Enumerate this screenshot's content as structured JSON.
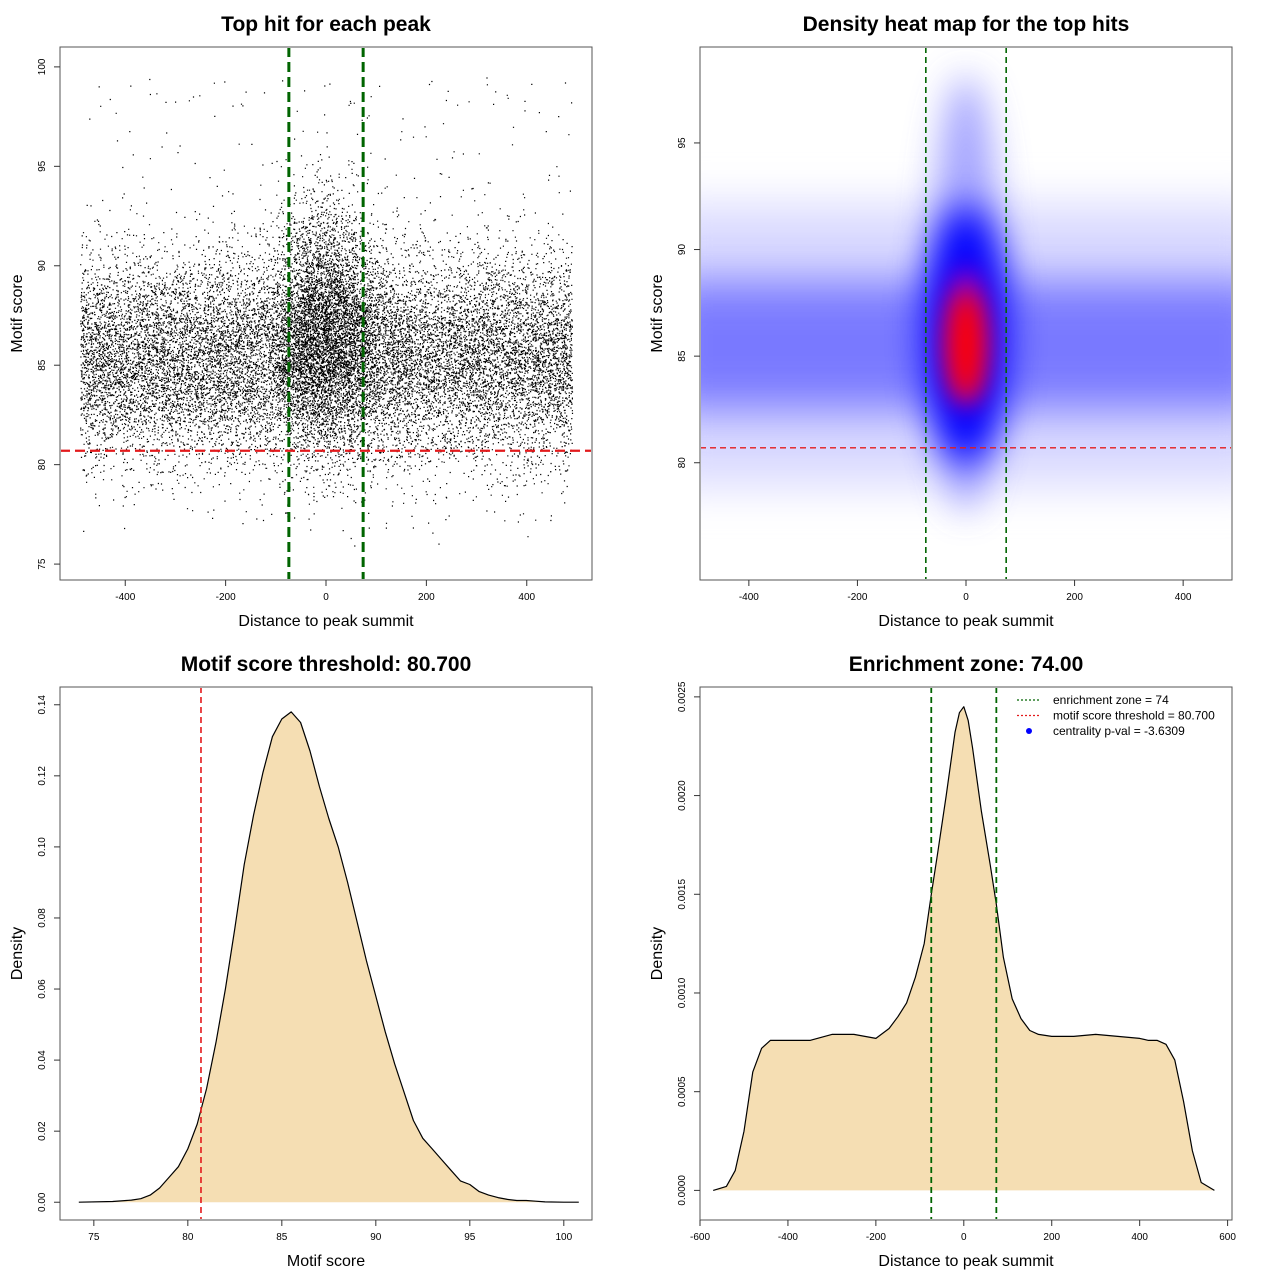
{
  "chart_data": [
    {
      "id": "scatter",
      "type": "scatter",
      "title": "Top hit for each peak",
      "xlabel": "Distance to peak summit",
      "ylabel": "Motif score",
      "xlim": [
        -530,
        530
      ],
      "ylim": [
        74.2,
        101
      ],
      "xticks": [
        -400,
        -200,
        0,
        200,
        400
      ],
      "yticks": [
        75,
        80,
        85,
        90,
        95,
        100
      ],
      "x_range": [
        -490,
        490
      ],
      "core_center": 86,
      "core_peak_max": 95.5,
      "outlier_max": 99.5,
      "point_count": 21000,
      "vlines": {
        "values": [
          -74,
          74
        ],
        "color": "#006400"
      },
      "hline": {
        "value": 80.7,
        "color": "#e31a1c"
      }
    },
    {
      "id": "heatmap",
      "type": "heatmap",
      "title": "Density heat map for the top hits",
      "xlabel": "Distance to peak summit",
      "ylabel": "Motif score",
      "xlim": [
        -490,
        490
      ],
      "ylim": [
        74.5,
        99.5
      ],
      "xticks": [
        -400,
        -200,
        0,
        200,
        400
      ],
      "yticks": [
        80,
        85,
        90,
        95
      ],
      "color_scale": [
        "white",
        "blue",
        "red"
      ],
      "background_band": {
        "center": 85.5,
        "spread": 3
      },
      "center_blob": {
        "x": 0,
        "y": 86,
        "x_spread": 60,
        "y_spread": 3.2
      },
      "vlines": {
        "values": [
          -74,
          74
        ],
        "color": "#006400"
      },
      "hline": {
        "value": 80.7,
        "color": "#e31a1c"
      }
    },
    {
      "id": "score_density",
      "type": "area",
      "title": "Motif score threshold: 80.700",
      "xlabel": "Motif score",
      "ylabel": "Density",
      "xlim": [
        73.2,
        101.5
      ],
      "ylim": [
        -0.005,
        0.145
      ],
      "xticks": [
        75,
        80,
        85,
        90,
        95,
        100
      ],
      "yticks": [
        0.0,
        0.02,
        0.04,
        0.06,
        0.08,
        0.1,
        0.12,
        0.14
      ],
      "ytick_decimals": 2,
      "fill_color": "#f5deb3",
      "x": [
        74.2,
        76,
        77,
        77.5,
        78,
        78.5,
        79,
        79.5,
        80,
        80.5,
        81,
        81.5,
        82,
        82.5,
        83,
        83.5,
        84,
        84.5,
        85,
        85.5,
        86,
        86.5,
        87,
        87.5,
        88,
        88.5,
        89,
        89.5,
        90,
        90.5,
        91,
        91.5,
        92,
        92.5,
        93,
        93.5,
        94,
        94.5,
        95,
        95.5,
        96,
        96.5,
        97,
        97.5,
        98,
        98.5,
        99,
        100,
        100.8
      ],
      "y": [
        0.0,
        0.0002,
        0.0006,
        0.001,
        0.002,
        0.004,
        0.007,
        0.01,
        0.015,
        0.022,
        0.032,
        0.045,
        0.06,
        0.077,
        0.095,
        0.109,
        0.121,
        0.131,
        0.136,
        0.138,
        0.135,
        0.127,
        0.117,
        0.108,
        0.1,
        0.09,
        0.079,
        0.068,
        0.058,
        0.048,
        0.039,
        0.031,
        0.023,
        0.018,
        0.015,
        0.012,
        0.009,
        0.006,
        0.005,
        0.003,
        0.002,
        0.0013,
        0.0008,
        0.0005,
        0.0005,
        0.0003,
        0.0001,
        0.0,
        0.0
      ],
      "vline": {
        "value": 80.7,
        "color": "#e31a1c"
      }
    },
    {
      "id": "distance_density",
      "type": "area",
      "title": "Enrichment zone: 74.00",
      "xlabel": "Distance to peak summit",
      "ylabel": "Density",
      "xlim": [
        -600,
        610
      ],
      "ylim": [
        -0.00015,
        0.00255
      ],
      "xticks": [
        -600,
        -400,
        -200,
        0,
        200,
        400,
        600
      ],
      "yticks": [
        0.0,
        0.0005,
        0.001,
        0.0015,
        0.002,
        0.0025
      ],
      "ytick_decimals": 4,
      "fill_color": "#f5deb3",
      "x": [
        -570,
        -540,
        -520,
        -500,
        -480,
        -460,
        -440,
        -420,
        -400,
        -350,
        -300,
        -250,
        -200,
        -170,
        -150,
        -130,
        -110,
        -90,
        -74,
        -60,
        -40,
        -20,
        -10,
        0,
        10,
        20,
        40,
        60,
        74,
        90,
        110,
        130,
        150,
        170,
        200,
        250,
        300,
        350,
        400,
        420,
        440,
        460,
        480,
        500,
        520,
        540,
        570
      ],
      "y": [
        0.0,
        2e-05,
        0.0001,
        0.0003,
        0.0006,
        0.00072,
        0.00076,
        0.00076,
        0.00076,
        0.00076,
        0.00079,
        0.00079,
        0.00077,
        0.00082,
        0.00088,
        0.00095,
        0.00108,
        0.00125,
        0.0015,
        0.0017,
        0.002,
        0.00232,
        0.00242,
        0.00245,
        0.00238,
        0.00224,
        0.00192,
        0.00165,
        0.00145,
        0.00118,
        0.00097,
        0.00087,
        0.00081,
        0.00079,
        0.00078,
        0.00078,
        0.00079,
        0.00078,
        0.00077,
        0.00076,
        0.00076,
        0.00074,
        0.00066,
        0.00045,
        0.0002,
        4e-05,
        0.0
      ],
      "vlines": {
        "values": [
          -74,
          74
        ],
        "color": "#006400"
      },
      "legend": {
        "position": "top-right",
        "items": [
          {
            "label": "enrichment zone = 74",
            "color": "#006400",
            "kind": "dotted-line"
          },
          {
            "label": "motif score threshold = 80.700",
            "color": "#e31a1c",
            "kind": "dotted-line"
          },
          {
            "label": "centrality p-val = -3.6309",
            "color": "#0000ff",
            "kind": "point"
          }
        ]
      }
    }
  ]
}
